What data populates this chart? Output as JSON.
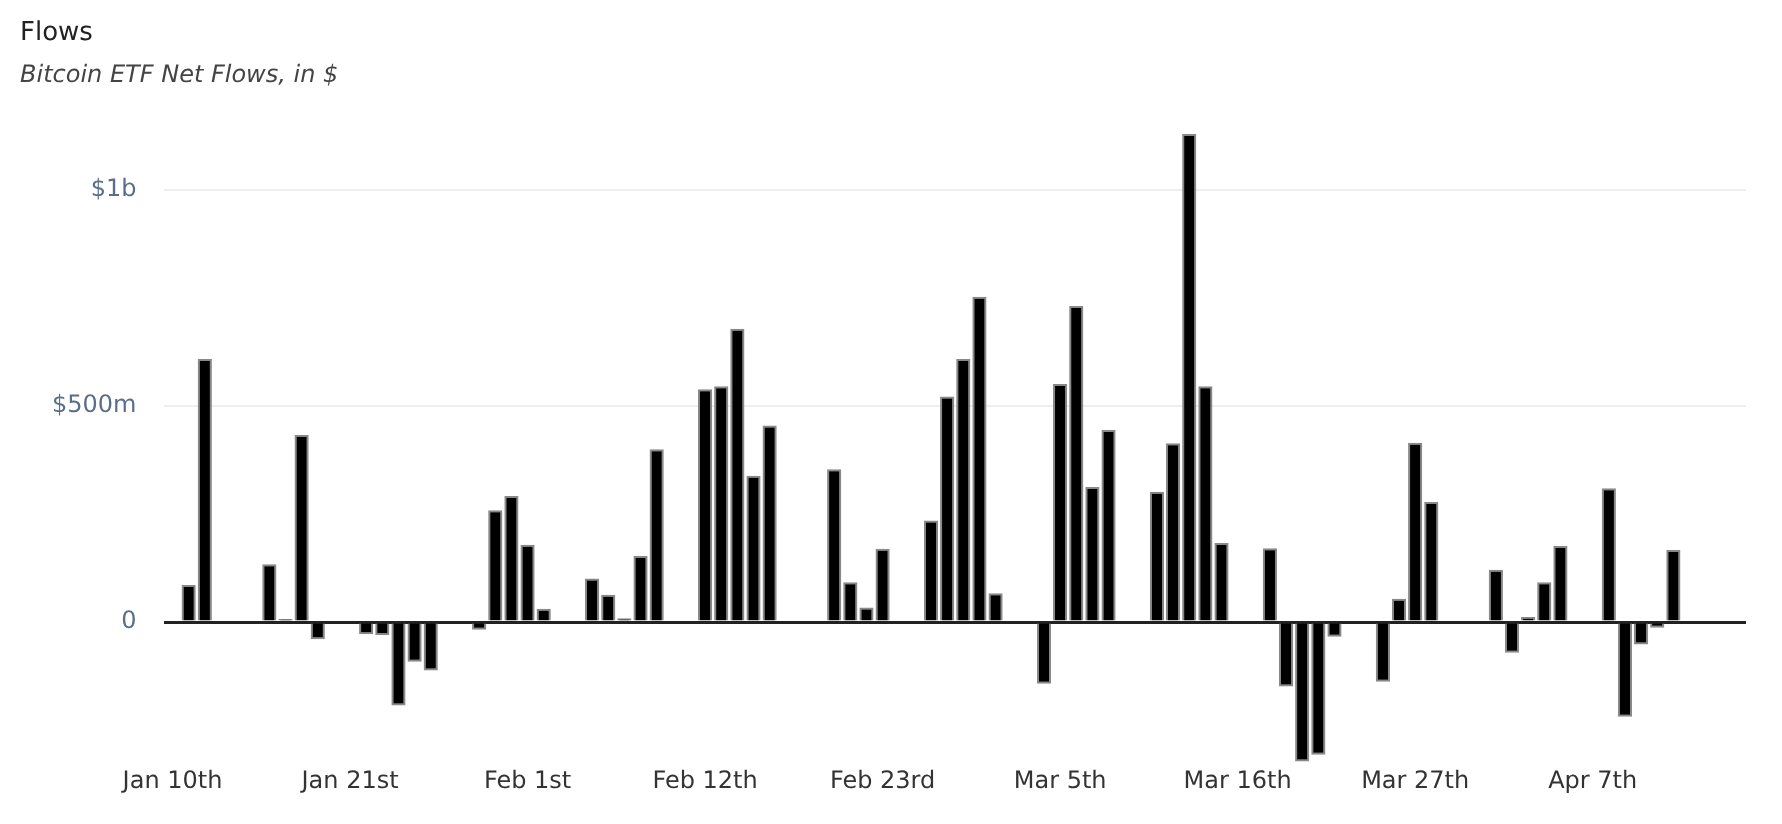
{
  "chart_data": {
    "type": "bar",
    "title": "Flows",
    "subtitle": "Bitcoin ETF Net Flows, in $",
    "x": [
      "--01-11",
      "--01-12",
      "--01-16",
      "--01-17",
      "--01-18",
      "--01-19",
      "--01-22",
      "--01-23",
      "--01-24",
      "--01-25",
      "--01-26",
      "--01-29",
      "--01-30",
      "--01-31",
      "--02-01",
      "--02-02",
      "--02-05",
      "--02-06",
      "--02-07",
      "--02-08",
      "--02-09",
      "--02-12",
      "--02-13",
      "--02-14",
      "--02-15",
      "--02-16",
      "--02-20",
      "--02-21",
      "--02-22",
      "--02-23",
      "--02-26",
      "--02-27",
      "--02-28",
      "--02-29",
      "--03-01",
      "--03-04",
      "--03-05",
      "--03-06",
      "--03-07",
      "--03-08",
      "--03-11",
      "--03-12",
      "--03-13",
      "--03-14",
      "--03-15",
      "--03-18",
      "--03-19",
      "--03-20",
      "--03-21",
      "--03-22",
      "--03-25",
      "--03-26",
      "--03-27",
      "--03-28",
      "--04-01",
      "--04-02",
      "--04-03",
      "--04-04",
      "--04-05",
      "--04-08",
      "--04-09",
      "--04-10",
      "--04-11",
      "--04-12"
    ],
    "values": [
      86000000,
      609000000,
      134000000,
      7000000,
      433000000,
      -40000000,
      -28000000,
      -30000000,
      -193000000,
      -92000000,
      -112000000,
      -18000000,
      259000000,
      292000000,
      179000000,
      31000000,
      101000000,
      63000000,
      9000000,
      153000000,
      400000000,
      539000000,
      546000000,
      679000000,
      339000000,
      455000000,
      354000000,
      92000000,
      34000000,
      170000000,
      235000000,
      522000000,
      609000000,
      753000000,
      67000000,
      -143000000,
      551000000,
      732000000,
      313000000,
      445000000,
      302000000,
      414000000,
      1130000000,
      546000000,
      183000000,
      171000000,
      -149000000,
      -323000000,
      -307000000,
      -34000000,
      -138000000,
      54000000,
      415000000,
      278000000,
      121000000,
      -71000000,
      12000000,
      92000000,
      176000000,
      310000000,
      -219000000,
      -52000000,
      -13000000,
      167000000
    ],
    "color": "#000000",
    "xlim": [
      "--01-09T12:00",
      "--04-16T12:00"
    ],
    "xticks": [
      {
        "value": "--01-10",
        "label": "Jan 10th"
      },
      {
        "value": "--01-21",
        "label": "Jan 21st"
      },
      {
        "value": "--02-01",
        "label": "Feb 1st"
      },
      {
        "value": "--02-12",
        "label": "Feb 12th"
      },
      {
        "value": "--02-23",
        "label": "Feb 23rd"
      },
      {
        "value": "--03-05",
        "label": "Mar 5th"
      },
      {
        "value": "--03-16",
        "label": "Mar 16th"
      },
      {
        "value": "--03-27",
        "label": "Mar 27th"
      },
      {
        "value": "--04-07",
        "label": "Apr 7th"
      }
    ],
    "ylim": [
      -323000000,
      1130000000
    ],
    "yticks": [
      0,
      {
        "value": 500000000,
        "label": "$500m"
      },
      {
        "value": 1000000000,
        "label": "$1b"
      }
    ],
    "grid": "y"
  }
}
